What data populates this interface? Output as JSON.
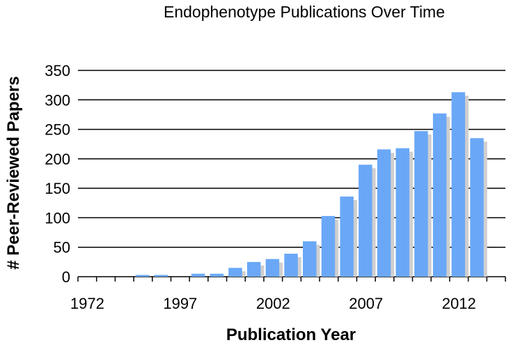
{
  "chart_data": {
    "type": "bar",
    "title": "Endophenotype Publications Over Time",
    "xlabel": "Publication Year",
    "ylabel": "# Peer-Reviewed Papers",
    "ylim": [
      0,
      350
    ],
    "yticks": [
      0,
      50,
      100,
      150,
      200,
      250,
      300,
      350
    ],
    "xtick_labels": [
      "1972",
      "1997",
      "2002",
      "2007",
      "2012"
    ],
    "grid": true,
    "legend": "none",
    "bar_color": "#6aa8f7",
    "shadow_color": "#cfcfcf",
    "categories": [
      "1972",
      "",
      "",
      "",
      "",
      "",
      "",
      "",
      "",
      "",
      "",
      "",
      "",
      "",
      "",
      "",
      "",
      "",
      "",
      "",
      "",
      "",
      ""
    ],
    "values": [
      0,
      0,
      0,
      3,
      3,
      0,
      5,
      5,
      15,
      25,
      30,
      39,
      60,
      103,
      136,
      190,
      216,
      218,
      247,
      277,
      313,
      235,
      0
    ]
  }
}
